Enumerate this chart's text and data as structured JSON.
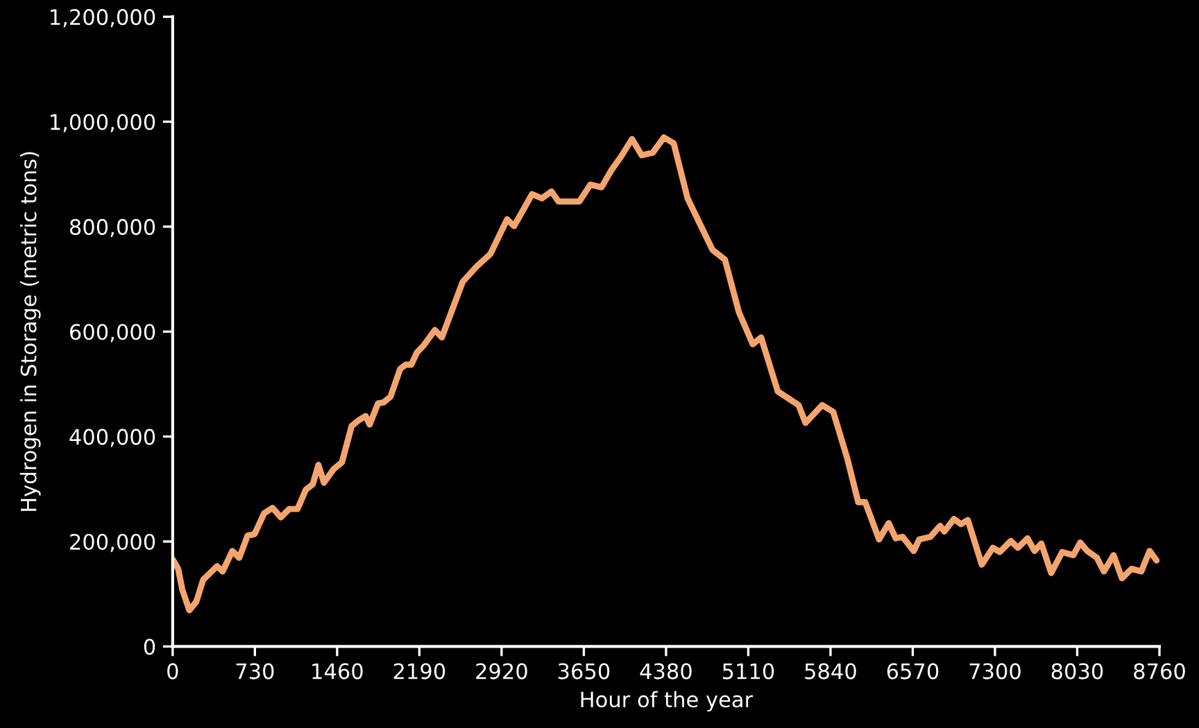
{
  "chart_data": {
    "type": "line",
    "xlabel": "Hour of the year",
    "ylabel": "Hydrogen in Storage (metric tons)",
    "grid": false,
    "legend": false,
    "marker": "none",
    "line_style": "solid",
    "xlim": [
      0,
      8760
    ],
    "xticks": [
      0,
      730,
      1460,
      2190,
      2920,
      3650,
      4380,
      5110,
      5840,
      6570,
      7300,
      8030,
      8760
    ],
    "ylim": [
      0,
      1200000
    ],
    "yticks": [
      {
        "value": 0,
        "label": "0"
      },
      {
        "value": 200000,
        "label": "200,000"
      },
      {
        "value": 400000,
        "label": "400,000"
      },
      {
        "value": 600000,
        "label": "600,000"
      },
      {
        "value": 800000,
        "label": "800,000"
      },
      {
        "value": 1000000,
        "label": "1,000,000"
      },
      {
        "value": 1200000,
        "label": "1,200,000"
      }
    ],
    "series": [
      {
        "color": "#f4a46e",
        "x": [
          0,
          49,
          86,
          148,
          209,
          271,
          333,
          394,
          444,
          530,
          591,
          665,
          727,
          813,
          887,
          961,
          1035,
          1109,
          1183,
          1244,
          1294,
          1343,
          1429,
          1503,
          1589,
          1651,
          1713,
          1749,
          1823,
          1872,
          1934,
          2020,
          2069,
          2119,
          2168,
          2230,
          2328,
          2390,
          2575,
          2698,
          2821,
          2969,
          3031,
          3191,
          3277,
          3363,
          3425,
          3610,
          3708,
          3807,
          3893,
          3979,
          4078,
          4164,
          4263,
          4361,
          4448,
          4571,
          4792,
          4903,
          5027,
          5150,
          5224,
          5372,
          5556,
          5618,
          5766,
          5864,
          5988,
          6086,
          6148,
          6271,
          6357,
          6419,
          6480,
          6579,
          6628,
          6727,
          6813,
          6850,
          6936,
          6998,
          7059,
          7183,
          7281,
          7343,
          7441,
          7503,
          7589,
          7651,
          7712,
          7799,
          7897,
          7996,
          8057,
          8119,
          8205,
          8267,
          8353,
          8427,
          8513,
          8599,
          8673,
          8735
        ],
        "values": [
          166000,
          148000,
          108000,
          69000,
          85000,
          127000,
          140000,
          153000,
          143000,
          182000,
          169000,
          211000,
          214000,
          254000,
          264000,
          246000,
          262000,
          262000,
          299000,
          309000,
          346000,
          312000,
          338000,
          351000,
          420000,
          431000,
          439000,
          423000,
          463000,
          465000,
          476000,
          529000,
          537000,
          537000,
          560000,
          574000,
          603000,
          589000,
          695000,
          724000,
          748000,
          814000,
          801000,
          862000,
          854000,
          867000,
          848000,
          848000,
          880000,
          875000,
          907000,
          933000,
          967000,
          936000,
          941000,
          970000,
          959000,
          854000,
          756000,
          737000,
          637000,
          576000,
          589000,
          486000,
          460000,
          426000,
          460000,
          447000,
          359000,
          275000,
          275000,
          204000,
          235000,
          206000,
          209000,
          182000,
          204000,
          209000,
          230000,
          219000,
          243000,
          233000,
          241000,
          156000,
          188000,
          180000,
          201000,
          188000,
          206000,
          182000,
          196000,
          140000,
          180000,
          174000,
          198000,
          182000,
          169000,
          143000,
          174000,
          130000,
          148000,
          143000,
          182000,
          164000
        ]
      }
    ]
  }
}
